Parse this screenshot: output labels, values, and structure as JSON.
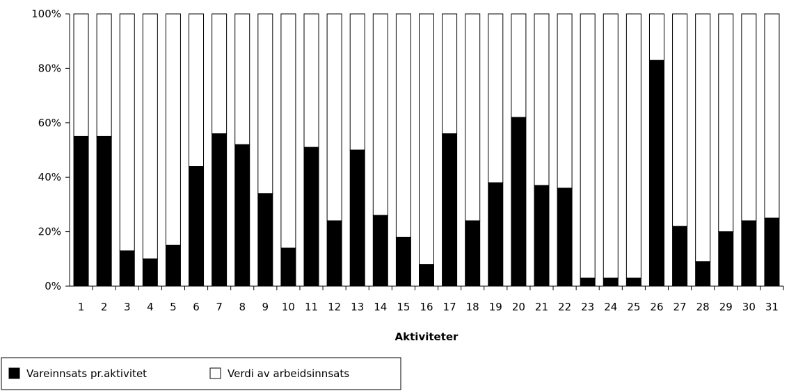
{
  "chart_data": {
    "type": "bar",
    "stacked": "percent",
    "xlabel": "Aktiviteter",
    "ylabel": "",
    "ylim": [
      0,
      100
    ],
    "yticks": [
      "0%",
      "20%",
      "40%",
      "60%",
      "80%",
      "100%"
    ],
    "categories": [
      "1",
      "2",
      "3",
      "4",
      "5",
      "6",
      "7",
      "8",
      "9",
      "10",
      "11",
      "12",
      "13",
      "14",
      "15",
      "16",
      "17",
      "18",
      "19",
      "20",
      "21",
      "22",
      "23",
      "24",
      "25",
      "26",
      "27",
      "28",
      "29",
      "30",
      "31"
    ],
    "series": [
      {
        "name": "Vareinnsats pr.aktivitet",
        "color": "#000000",
        "values": [
          55,
          55,
          13,
          10,
          15,
          44,
          56,
          52,
          34,
          14,
          51,
          24,
          50,
          26,
          18,
          8,
          56,
          24,
          38,
          62,
          37,
          36,
          3,
          3,
          3,
          83,
          22,
          9,
          20,
          24,
          25
        ]
      },
      {
        "name": "Verdi av arbeidsinnsats",
        "color": "#ffffff",
        "values": [
          45,
          45,
          87,
          90,
          85,
          56,
          44,
          48,
          66,
          86,
          49,
          76,
          50,
          74,
          82,
          92,
          44,
          76,
          62,
          38,
          63,
          64,
          97,
          97,
          97,
          17,
          78,
          91,
          80,
          76,
          75
        ]
      }
    ],
    "grid": false,
    "legend_position": "bottom-left"
  }
}
